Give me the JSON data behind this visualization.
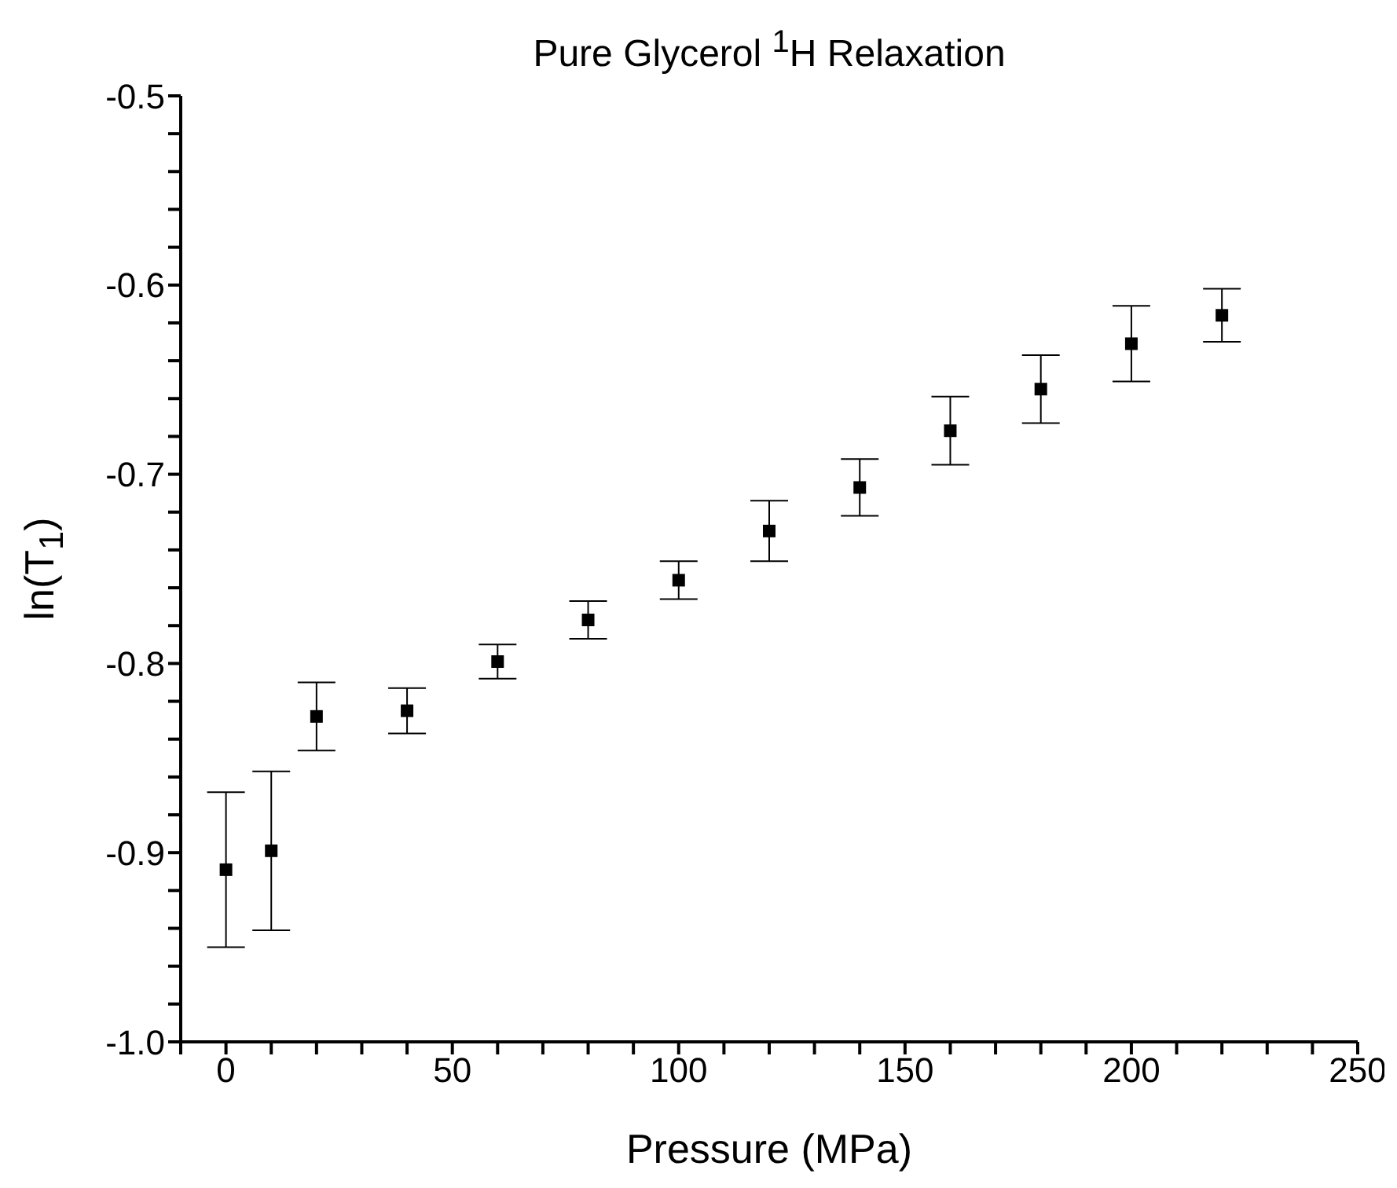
{
  "chart_data": {
    "type": "scatter",
    "title": "Pure Glycerol $^{1}$H Relaxation",
    "xlabel": "Pressure (MPa)",
    "ylabel": "ln(T$_{1}$)",
    "x": [
      0,
      10,
      20,
      40,
      60,
      80,
      100,
      120,
      140,
      160,
      180,
      200,
      220
    ],
    "series": [
      {
        "color": "#000000",
        "values": [
          -0.909,
          -0.899,
          -0.828,
          -0.825,
          -0.799,
          -0.777,
          -0.756,
          -0.73,
          -0.707,
          -0.677,
          -0.655,
          -0.631,
          -0.616
        ],
        "errors": [
          0.041,
          0.042,
          0.018,
          0.012,
          0.009,
          0.01,
          0.01,
          0.016,
          0.015,
          0.018,
          0.018,
          0.02,
          0.014
        ]
      }
    ],
    "marker": "square",
    "grid": false,
    "legend": false,
    "xlim": [
      -10,
      250
    ],
    "xticks": [
      {
        "value": -10,
        "label": null
      },
      0,
      {
        "value": 10,
        "label": null
      },
      {
        "value": 20,
        "label": null
      },
      {
        "value": 30,
        "label": null
      },
      {
        "value": 40,
        "label": null
      },
      50,
      {
        "value": 60,
        "label": null
      },
      {
        "value": 70,
        "label": null
      },
      {
        "value": 80,
        "label": null
      },
      {
        "value": 90,
        "label": null
      },
      100,
      {
        "value": 110,
        "label": null
      },
      {
        "value": 120,
        "label": null
      },
      {
        "value": 130,
        "label": null
      },
      {
        "value": 140,
        "label": null
      },
      150,
      {
        "value": 160,
        "label": null
      },
      {
        "value": 170,
        "label": null
      },
      {
        "value": 180,
        "label": null
      },
      {
        "value": 190,
        "label": null
      },
      200,
      {
        "value": 210,
        "label": null
      },
      {
        "value": 220,
        "label": null
      },
      {
        "value": 230,
        "label": null
      },
      {
        "value": 240,
        "label": null
      },
      250
    ],
    "ylim": [
      -1.0,
      -0.5
    ],
    "yticks": [
      {
        "value": -1.0,
        "label": "-1.0"
      },
      {
        "value": -0.98,
        "label": null
      },
      {
        "value": -0.96,
        "label": null
      },
      {
        "value": -0.94,
        "label": null
      },
      {
        "value": -0.92,
        "label": null
      },
      -0.9,
      {
        "value": -0.88,
        "label": null
      },
      {
        "value": -0.86,
        "label": null
      },
      {
        "value": -0.84,
        "label": null
      },
      {
        "value": -0.82,
        "label": null
      },
      -0.8,
      {
        "value": -0.78,
        "label": null
      },
      {
        "value": -0.76,
        "label": null
      },
      {
        "value": -0.74,
        "label": null
      },
      {
        "value": -0.72,
        "label": null
      },
      -0.7,
      {
        "value": -0.68,
        "label": null
      },
      {
        "value": -0.66,
        "label": null
      },
      {
        "value": -0.64,
        "label": null
      },
      {
        "value": -0.62,
        "label": null
      },
      -0.6,
      {
        "value": -0.58,
        "label": null
      },
      {
        "value": -0.56,
        "label": null
      },
      {
        "value": -0.54,
        "label": null
      },
      {
        "value": -0.52,
        "label": null
      },
      -0.5
    ]
  }
}
